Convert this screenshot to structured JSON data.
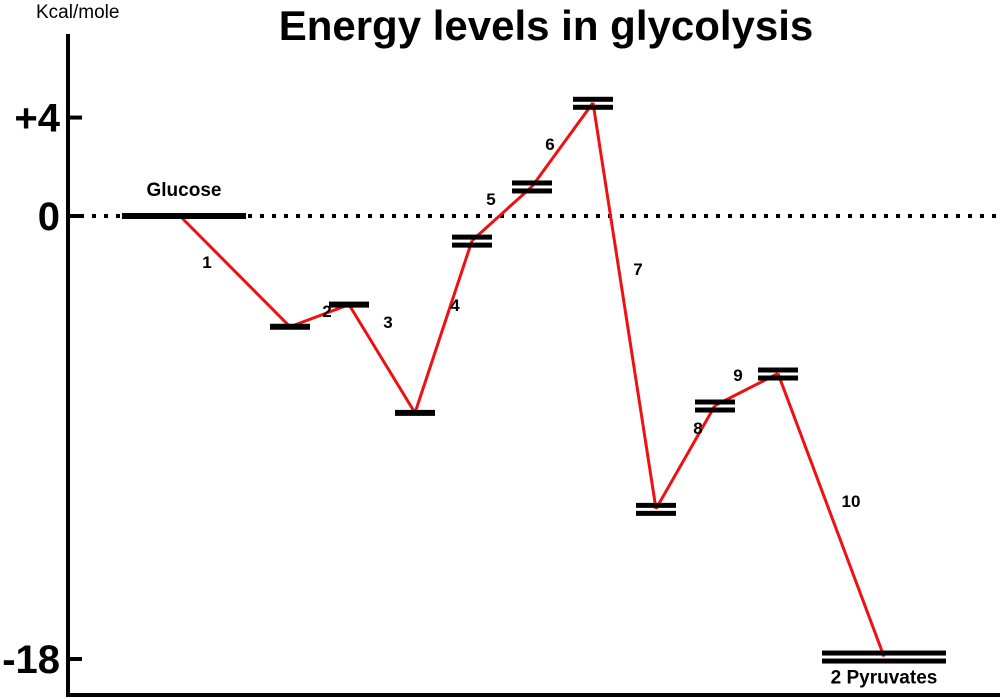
{
  "chart_data": {
    "type": "line",
    "title": "Energy levels in glycolysis",
    "ylabel": "Kcal/mole",
    "yticks": [
      {
        "value": 4,
        "label": "+4"
      },
      {
        "value": 0,
        "label": "0"
      },
      {
        "value": -18,
        "label": "-18"
      }
    ],
    "reference_line": {
      "value": 0,
      "style": "dotted"
    },
    "line_color": "#ee1111",
    "levels": [
      {
        "value": 0,
        "label": "Glucose",
        "bars": 1
      },
      {
        "value": -4.5,
        "label": "",
        "bars": 1
      },
      {
        "value": -3.6,
        "label": "",
        "bars": 1
      },
      {
        "value": -8,
        "label": "",
        "bars": 1
      },
      {
        "value": -1,
        "label": "",
        "bars": 2
      },
      {
        "value": 1.2,
        "label": "",
        "bars": 2
      },
      {
        "value": 4.6,
        "label": "",
        "bars": 2
      },
      {
        "value": -11.9,
        "label": "",
        "bars": 2
      },
      {
        "value": -7.7,
        "label": "",
        "bars": 2
      },
      {
        "value": -6.4,
        "label": "",
        "bars": 2
      },
      {
        "value": -17.9,
        "label": "2 Pyruvates",
        "bars": 2
      }
    ],
    "steps": [
      "1",
      "2",
      "3",
      "4",
      "5",
      "6",
      "7",
      "8",
      "9",
      "10"
    ]
  }
}
